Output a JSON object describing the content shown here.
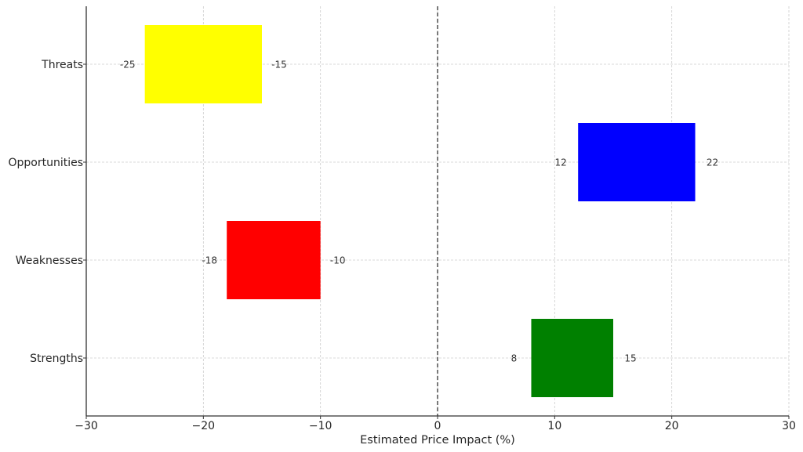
{
  "chart_data": {
    "type": "bar",
    "orientation": "horizontal",
    "subtype": "floating-range",
    "title": "",
    "xlabel": "Estimated Price Impact (%)",
    "ylabel": "",
    "xlim": [
      -30,
      30
    ],
    "xticks": [
      -30,
      -20,
      -10,
      0,
      10,
      20,
      30
    ],
    "xtick_labels": [
      "−30",
      "−20",
      "−10",
      "0",
      "10",
      "20",
      "30"
    ],
    "grid": true,
    "zero_line": {
      "x": 0,
      "style": "dashed",
      "color": "#000000"
    },
    "categories": [
      "Strengths",
      "Weaknesses",
      "Opportunities",
      "Threats"
    ],
    "series": [
      {
        "name": "Strengths",
        "start": 8,
        "end": 15,
        "color": "#008000",
        "start_label": "8",
        "end_label": "15"
      },
      {
        "name": "Weaknesses",
        "start": -18,
        "end": -10,
        "color": "#ff0000",
        "start_label": "-18",
        "end_label": "-10"
      },
      {
        "name": "Opportunities",
        "start": 12,
        "end": 22,
        "color": "#0000ff",
        "start_label": "12",
        "end_label": "22"
      },
      {
        "name": "Threats",
        "start": -25,
        "end": -15,
        "color": "#ffff00",
        "start_label": "-25",
        "end_label": "-15"
      }
    ],
    "legend": null
  }
}
